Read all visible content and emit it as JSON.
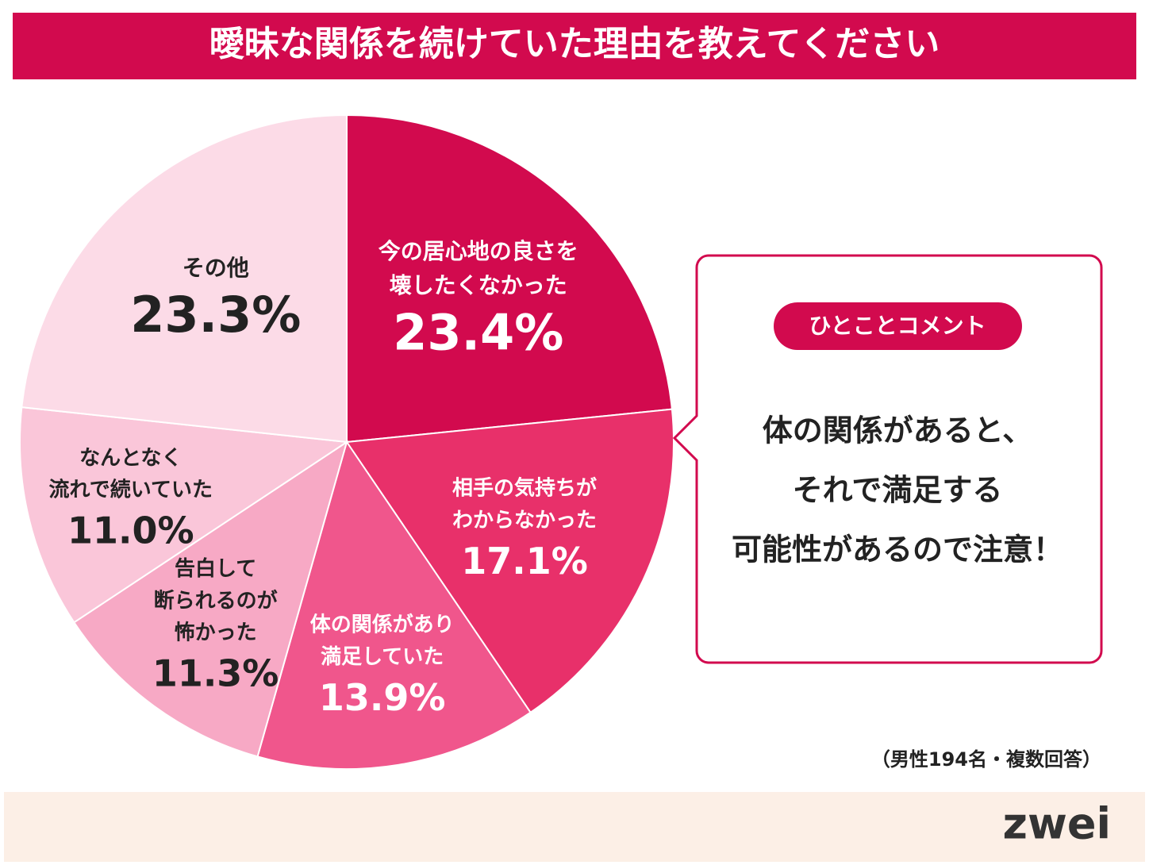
{
  "chart_data": {
    "type": "pie",
    "title": "曖昧な関係を続けていた理由を教えてください",
    "categories": [
      [
        "今の居心地の良さを",
        "壊したくなかった"
      ],
      [
        "相手の気持ちが",
        "わからなかった"
      ],
      [
        "体の関係があり",
        "満足していた"
      ],
      [
        "告白して",
        "断られるのが",
        "怖かった"
      ],
      [
        "なんとなく",
        "流れで続いていた"
      ],
      [
        "その他"
      ]
    ],
    "values": [
      23.4,
      17.1,
      13.9,
      11.3,
      11.0,
      23.3
    ],
    "value_labels": [
      "23.4%",
      "17.1%",
      "13.9%",
      "11.3%",
      "11.0%",
      "23.3%"
    ],
    "colors": [
      "#d20a4e",
      "#e8306a",
      "#f0568c",
      "#f7a9c5",
      "#fac6d9",
      "#fcdbe7"
    ],
    "label_colors": [
      "#ffffff",
      "#ffffff",
      "#ffffff",
      "#222222",
      "#222222",
      "#222222"
    ],
    "note": "（男性194名・複数回答）"
  },
  "comment": {
    "badge": "ひとことコメント",
    "lines": [
      "体の関係があると、",
      "それで満足する",
      "可能性があるので注意！"
    ]
  },
  "footer": {
    "logo": "zwei"
  }
}
